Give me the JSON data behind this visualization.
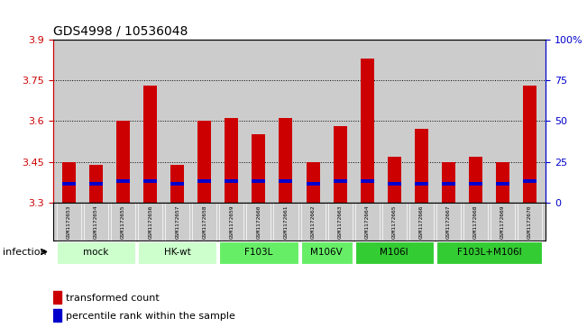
{
  "title": "GDS4998 / 10536048",
  "samples": [
    "GSM1172653",
    "GSM1172654",
    "GSM1172655",
    "GSM1172656",
    "GSM1172657",
    "GSM1172658",
    "GSM1172659",
    "GSM1172660",
    "GSM1172661",
    "GSM1172662",
    "GSM1172663",
    "GSM1172664",
    "GSM1172665",
    "GSM1172666",
    "GSM1172667",
    "GSM1172668",
    "GSM1172669",
    "GSM1172670"
  ],
  "transformed_counts": [
    3.45,
    3.44,
    3.6,
    3.73,
    3.44,
    3.6,
    3.61,
    3.55,
    3.61,
    3.45,
    3.58,
    3.83,
    3.47,
    3.57,
    3.45,
    3.47,
    3.45,
    3.73
  ],
  "percentile_positions": [
    3.37,
    3.37,
    3.38,
    3.38,
    3.37,
    3.38,
    3.38,
    3.38,
    3.38,
    3.37,
    3.38,
    3.38,
    3.37,
    3.37,
    3.37,
    3.37,
    3.37,
    3.38
  ],
  "y_min": 3.3,
  "y_max": 3.9,
  "y_ticks": [
    3.3,
    3.45,
    3.6,
    3.75,
    3.9
  ],
  "y_tick_labels": [
    "3.3",
    "3.45",
    "3.6",
    "3.75",
    "3.9"
  ],
  "y2_ticks": [
    0,
    25,
    50,
    75,
    100
  ],
  "y2_tick_labels": [
    "0",
    "25",
    "50",
    "75",
    "100%"
  ],
  "bar_color": "#cc0000",
  "percentile_color": "#0000cc",
  "bar_width": 0.5,
  "group_row": [
    {
      "label": "mock",
      "cols": [
        0,
        1,
        2
      ],
      "color": "#ccffcc"
    },
    {
      "label": "HK-wt",
      "cols": [
        3,
        4,
        5
      ],
      "color": "#ccffcc"
    },
    {
      "label": "F103L",
      "cols": [
        6,
        7,
        8
      ],
      "color": "#66ee66"
    },
    {
      "label": "M106V",
      "cols": [
        9,
        10
      ],
      "color": "#66ee66"
    },
    {
      "label": "M106I",
      "cols": [
        11,
        12,
        13
      ],
      "color": "#33cc33"
    },
    {
      "label": "F103L+M106I",
      "cols": [
        14,
        15,
        16,
        17
      ],
      "color": "#33cc33"
    }
  ],
  "infection_label": "infection",
  "legend_bar_label": "transformed count",
  "legend_pct_label": "percentile rank within the sample",
  "grid_color": "#000000",
  "grid_ticks": [
    3.45,
    3.6,
    3.75
  ],
  "axis_color_left": "#cc0000",
  "axis_color_right": "#0000cc",
  "bg_bars": "#cccccc"
}
